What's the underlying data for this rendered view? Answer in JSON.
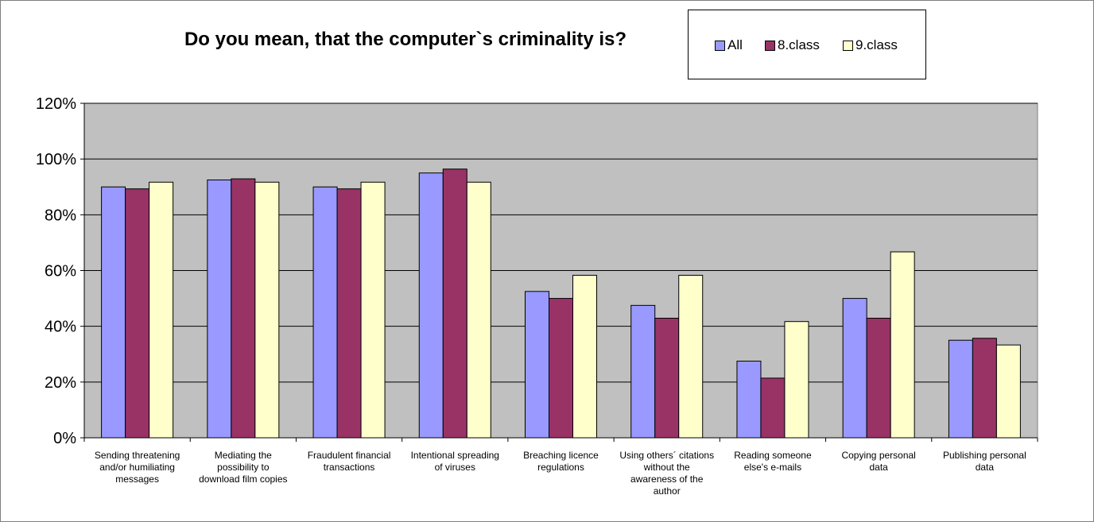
{
  "chart_data": {
    "type": "bar",
    "title": "Do you mean, that the computer`s criminality is?",
    "categories": [
      [
        "Sending threatening",
        "and/or humiliating",
        "messages"
      ],
      [
        "Mediating the",
        "possibility to",
        "download film copies"
      ],
      [
        "Fraudulent financial",
        "transactions"
      ],
      [
        "Intentional spreading",
        "of viruses"
      ],
      [
        "Breaching licence",
        "regulations"
      ],
      [
        "Using others´ citations",
        "without the",
        "awareness of the",
        "author"
      ],
      [
        "Reading someone",
        "else's e-mails"
      ],
      [
        "Copying personal",
        "data"
      ],
      [
        "Publishing personal",
        "data"
      ]
    ],
    "series": [
      {
        "name": "All",
        "color": "#9999ff",
        "values": [
          90,
          92.5,
          90,
          95,
          52.5,
          47.5,
          27.5,
          50,
          35
        ]
      },
      {
        "name": "8.class",
        "color": "#993366",
        "values": [
          89.3,
          92.9,
          89.3,
          96.4,
          50,
          42.9,
          21.4,
          42.9,
          35.7
        ]
      },
      {
        "name": "9.class",
        "color": "#ffffcc",
        "values": [
          91.7,
          91.7,
          91.7,
          91.7,
          58.3,
          58.3,
          41.7,
          66.7,
          33.3
        ]
      }
    ],
    "y_ticks": [
      "0%",
      "20%",
      "40%",
      "60%",
      "80%",
      "100%",
      "120%"
    ],
    "ylim": [
      0,
      120
    ],
    "grid": true,
    "plot_background": "#c0c0c0",
    "legend_position": "top-right"
  }
}
